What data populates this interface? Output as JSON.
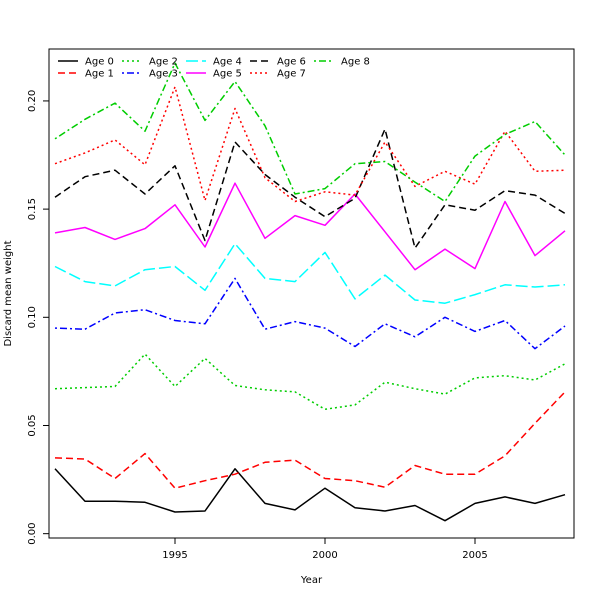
{
  "chart_data": {
    "type": "line",
    "title": "",
    "xlabel": "Year",
    "ylabel": "Discard mean weight",
    "xlim": [
      1990.8,
      2008.3
    ],
    "ylim": [
      -0.002,
      0.224
    ],
    "x_ticks": [
      1995,
      2000,
      2005
    ],
    "x_tick_labels": [
      "1995",
      "2000",
      "2005"
    ],
    "y_ticks": [
      0.0,
      0.05,
      0.1,
      0.15,
      0.2
    ],
    "y_tick_labels": [
      "0.00",
      "0.05",
      "0.10",
      "0.15",
      "0.20"
    ],
    "grid": false,
    "legend_position": "top-left",
    "x": [
      1991,
      1992,
      1993,
      1994,
      1995,
      1996,
      1997,
      1998,
      1999,
      2000,
      2001,
      2002,
      2003,
      2004,
      2005,
      2006,
      2007,
      2008
    ],
    "series": [
      {
        "name": "Age 0",
        "color": "#000000",
        "dash": "solid",
        "values": [
          0.03,
          0.015,
          0.015,
          0.0145,
          0.01,
          0.0105,
          0.03,
          0.014,
          0.011,
          0.021,
          0.012,
          0.0105,
          0.013,
          0.006,
          0.014,
          0.017,
          0.014,
          0.018
        ]
      },
      {
        "name": "Age 1",
        "color": "#ff0000",
        "dash": "dashed",
        "values": [
          0.035,
          0.0345,
          0.0255,
          0.037,
          0.021,
          0.0245,
          0.0275,
          0.033,
          0.034,
          0.0255,
          0.0245,
          0.0215,
          0.0315,
          0.0275,
          0.0275,
          0.036,
          0.051,
          0.0655
        ]
      },
      {
        "name": "Age 2",
        "color": "#00cd00",
        "dash": "dotted",
        "values": [
          0.067,
          0.0675,
          0.068,
          0.083,
          0.068,
          0.081,
          0.0685,
          0.0665,
          0.0655,
          0.0575,
          0.0595,
          0.07,
          0.067,
          0.0645,
          0.072,
          0.073,
          0.071,
          0.0785
        ]
      },
      {
        "name": "Age 3",
        "color": "#0000ff",
        "dash": "dotdash",
        "values": [
          0.095,
          0.0945,
          0.102,
          0.1035,
          0.0985,
          0.097,
          0.118,
          0.0945,
          0.098,
          0.095,
          0.0865,
          0.097,
          0.091,
          0.1,
          0.0935,
          0.0985,
          0.0855,
          0.096
        ]
      },
      {
        "name": "Age 4",
        "color": "#00ffff",
        "dash": "longdash",
        "values": [
          0.1235,
          0.1165,
          0.1145,
          0.122,
          0.1235,
          0.1125,
          0.134,
          0.118,
          0.1165,
          0.13,
          0.1085,
          0.1195,
          0.108,
          0.1065,
          0.1105,
          0.115,
          0.114,
          0.115
        ]
      },
      {
        "name": "Age 5",
        "color": "#ff00ff",
        "dash": "solid",
        "values": [
          0.139,
          0.1415,
          0.136,
          0.141,
          0.152,
          0.1325,
          0.162,
          0.1365,
          0.147,
          0.1425,
          0.157,
          0.1395,
          0.122,
          0.1315,
          0.1225,
          0.1535,
          0.1285,
          0.14
        ]
      },
      {
        "name": "Age 6",
        "color": "#000000",
        "dash": "dashed",
        "values": [
          0.1555,
          0.165,
          0.168,
          0.157,
          0.17,
          0.1355,
          0.181,
          0.166,
          0.1555,
          0.1465,
          0.155,
          0.187,
          0.132,
          0.152,
          0.1495,
          0.1585,
          0.1565,
          0.148
        ]
      },
      {
        "name": "Age 7",
        "color": "#ff0000",
        "dash": "dotted",
        "values": [
          0.171,
          0.176,
          0.182,
          0.1705,
          0.2065,
          0.154,
          0.1965,
          0.1645,
          0.1535,
          0.158,
          0.1565,
          0.181,
          0.1605,
          0.1675,
          0.1615,
          0.186,
          0.1675,
          0.168
        ]
      },
      {
        "name": "Age 8",
        "color": "#00cd00",
        "dash": "dotdash",
        "values": [
          0.1825,
          0.1915,
          0.199,
          0.186,
          0.2175,
          0.191,
          0.209,
          0.1885,
          0.157,
          0.1595,
          0.171,
          0.172,
          0.1625,
          0.1535,
          0.1745,
          0.1845,
          0.1905,
          0.175
        ]
      }
    ]
  }
}
